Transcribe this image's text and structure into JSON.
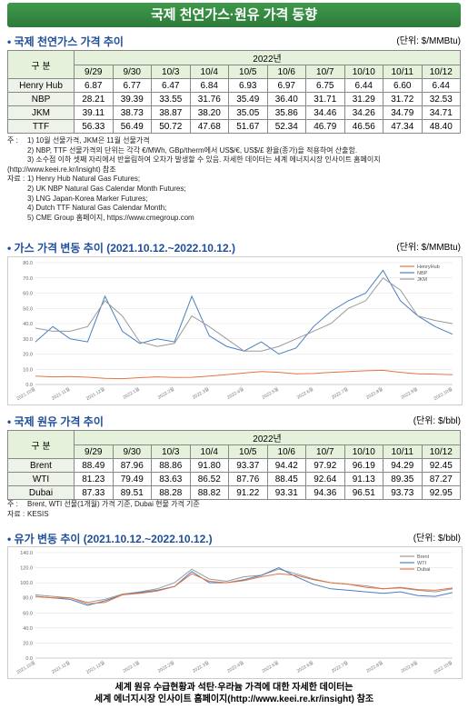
{
  "header": {
    "title": "국제 천연가스·원유 가격 동향"
  },
  "gas_section": {
    "title": "국제 천연가스 가격 추이",
    "unit": "(단위: $/MMBtu)"
  },
  "gas_table": {
    "row_header": "구 분",
    "year": "2022년",
    "dates": [
      "9/29",
      "9/30",
      "10/3",
      "10/4",
      "10/5",
      "10/6",
      "10/7",
      "10/10",
      "10/11",
      "10/12"
    ],
    "rows": [
      {
        "name": "Henry Hub",
        "values": [
          "6.87",
          "6.77",
          "6.47",
          "6.84",
          "6.93",
          "6.97",
          "6.75",
          "6.44",
          "6.60",
          "6.44"
        ]
      },
      {
        "name": "NBP",
        "values": [
          "28.21",
          "39.39",
          "33.55",
          "31.76",
          "35.49",
          "36.40",
          "31.71",
          "31.29",
          "31.72",
          "32.53"
        ]
      },
      {
        "name": "JKM",
        "values": [
          "39.11",
          "38.73",
          "38.87",
          "38.20",
          "35.05",
          "35.86",
          "34.46",
          "34.26",
          "34.79",
          "34.71"
        ]
      },
      {
        "name": "TTF",
        "values": [
          "56.33",
          "56.49",
          "50.72",
          "47.68",
          "51.67",
          "52.34",
          "46.79",
          "46.56",
          "47.34",
          "48.40"
        ]
      }
    ]
  },
  "gas_notes": {
    "label": "주 :",
    "items": [
      "1) 10월 선물가격, JKM은 11월 선물가격",
      "2) NBP, TTF 선물가격의 단위는 각각 €/MWh, GBp/therm에서 US$/€, US$/£ 환율(종가)을 적용하여 산출함.",
      "3) 소수점 이하 셋째 자리에서 반올림하여 오차가 발생할 수 있음. 자세한 데이터는 세계 에너지시장 인사이트 홈페이지(http://www.keei.re.kr/insight) 참조"
    ]
  },
  "gas_sources": {
    "label": "자료 :",
    "items": [
      "1) Henry Hub Natural Gas Futures;",
      "2) UK NBP Natural Gas Calendar Month Futures;",
      "3) LNG Japan-Korea Marker Futures;",
      "4) Dutch TTF Natural Gas Calendar Month;",
      "5) CME Group 홈페이지, https://www.cmegroup.com"
    ]
  },
  "oil_section": {
    "title": "국제 원유 가격 추이",
    "unit": "(단위: $/bbl)"
  },
  "oil_table": {
    "row_header": "구 분",
    "year": "2022년",
    "dates": [
      "9/29",
      "9/30",
      "10/3",
      "10/4",
      "10/5",
      "10/6",
      "10/7",
      "10/10",
      "10/11",
      "10/12"
    ],
    "rows": [
      {
        "name": "Brent",
        "values": [
          "88.49",
          "87.96",
          "88.86",
          "91.80",
          "93.37",
          "94.42",
          "97.92",
          "96.19",
          "94.29",
          "92.45"
        ]
      },
      {
        "name": "WTI",
        "values": [
          "81.23",
          "79.49",
          "83.63",
          "86.52",
          "87.76",
          "88.45",
          "92.64",
          "91.13",
          "89.35",
          "87.27"
        ]
      },
      {
        "name": "Dubai",
        "values": [
          "87.33",
          "89.51",
          "88.28",
          "88.82",
          "91.22",
          "93.31",
          "94.36",
          "96.51",
          "93.73",
          "92.95"
        ]
      }
    ]
  },
  "oil_notes": {
    "label": "주 :",
    "items": [
      "Brent, WTI 선물(1개월) 가격 기준, Dubai 현물 가격 기준"
    ]
  },
  "oil_sources": {
    "label": "자료 :",
    "items": [
      "KESIS"
    ]
  },
  "chart_data": [
    {
      "type": "line",
      "title": "가스 가격 변동 추이 (2021.10.12.~2022.10.12.)",
      "unit": "(단위: $/MMBtu)",
      "categories": [
        "2021.10월",
        null,
        "2021.11월",
        null,
        "2021.12월",
        null,
        "2022.1월",
        null,
        "2022.2월",
        null,
        "2022.3월",
        null,
        "2022.4월",
        null,
        "2022.5월",
        null,
        "2022.6월",
        null,
        "2022.7월",
        null,
        "2022.8월",
        null,
        "2022.9월",
        null,
        "2022.10월"
      ],
      "series": [
        {
          "name": "HenryHub",
          "color": "#e8743b",
          "values": [
            5.5,
            5.0,
            5.2,
            4.8,
            4.0,
            3.8,
            4.5,
            5.0,
            4.6,
            4.7,
            5.5,
            6.5,
            7.5,
            8.5,
            8.0,
            7.0,
            7.2,
            8.0,
            8.5,
            9.0,
            9.3,
            8.0,
            7.0,
            6.8,
            6.4
          ]
        },
        {
          "name": "NBP",
          "color": "#4a7fc1",
          "values": [
            28,
            38,
            30,
            28,
            58,
            35,
            27,
            30,
            28,
            58,
            32,
            25,
            22,
            28,
            20,
            24,
            38,
            48,
            55,
            60,
            75,
            55,
            45,
            38,
            33
          ]
        },
        {
          "name": "JKM",
          "color": "#9a9a9a",
          "values": [
            37,
            35,
            35,
            38,
            55,
            45,
            28,
            25,
            27,
            45,
            38,
            30,
            22,
            22,
            25,
            30,
            35,
            40,
            50,
            55,
            70,
            62,
            45,
            42,
            40
          ]
        }
      ],
      "ylim": [
        0,
        80
      ],
      "yticks": [
        {
          "value": 0,
          "label": "0.0"
        },
        {
          "value": 10,
          "label": "10.0"
        },
        {
          "value": 20,
          "label": "20.0"
        },
        {
          "value": 30,
          "label": "30.0"
        },
        {
          "value": 40,
          "label": "40.0"
        },
        {
          "value": 50,
          "label": "50.0"
        },
        {
          "value": 60,
          "label": "60.0"
        },
        {
          "value": 70,
          "label": "70.0"
        },
        {
          "value": 80,
          "label": "80.0"
        }
      ],
      "grid": true,
      "legend": "upper right"
    },
    {
      "type": "line",
      "title": "유가 변동 추이 (2021.10.12.~2022.10.12.)",
      "unit": "(단위: $/bbl)",
      "categories": [
        "2021.10월",
        null,
        "2021.11월",
        null,
        "2021.12월",
        null,
        "2022.1월",
        null,
        "2022.2월",
        null,
        "2022.3월",
        null,
        "2022.4월",
        null,
        "2022.5월",
        null,
        "2022.6월",
        null,
        "2022.7월",
        null,
        "2022.8월",
        null,
        "2022.9월",
        null,
        "2022.10월"
      ],
      "series": [
        {
          "name": "Brent",
          "color": "#9a9a9a",
          "values": [
            84,
            82,
            80,
            74,
            78,
            85,
            88,
            92,
            100,
            118,
            105,
            102,
            108,
            110,
            118,
            112,
            105,
            100,
            98,
            96,
            92,
            93,
            90,
            88,
            92
          ]
        },
        {
          "name": "WTI",
          "color": "#4a7fc1",
          "values": [
            82,
            80,
            78,
            70,
            76,
            84,
            87,
            90,
            95,
            115,
            100,
            100,
            104,
            110,
            120,
            108,
            98,
            92,
            90,
            88,
            86,
            88,
            83,
            82,
            87
          ]
        },
        {
          "name": "Dubai",
          "color": "#e8743b",
          "values": [
            82,
            80,
            80,
            72,
            74,
            84,
            86,
            89,
            95,
            112,
            102,
            100,
            103,
            108,
            112,
            110,
            104,
            100,
            98,
            94,
            92,
            94,
            91,
            90,
            93
          ]
        }
      ],
      "ylim": [
        0,
        140
      ],
      "yticks": [
        {
          "value": 0,
          "label": "0.0"
        },
        {
          "value": 20,
          "label": "20.0"
        },
        {
          "value": 40,
          "label": "40.0"
        },
        {
          "value": 60,
          "label": "60.0"
        },
        {
          "value": 80,
          "label": "80.0"
        },
        {
          "value": 100,
          "label": "100.0"
        },
        {
          "value": 120,
          "label": "120.0"
        },
        {
          "value": 140,
          "label": "140.0"
        }
      ],
      "grid": true,
      "legend": "upper right"
    }
  ],
  "footer": {
    "lines": [
      "세계 원유 수급현황과 석탄·우라늄 가격에 대한 자세한 데이터는",
      "세계 에너지시장 인사이트 홈페이지(http://www.keei.re.kr/insight) 참조"
    ]
  }
}
